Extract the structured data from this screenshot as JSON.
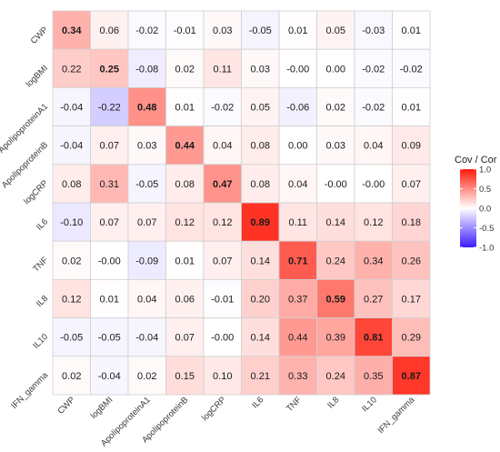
{
  "chart_data": {
    "type": "heatmap",
    "title": "",
    "variables": [
      "CWP",
      "logBMI",
      "ApolipoproteinA1",
      "ApolipoproteinB",
      "logCRP",
      "IL6",
      "TNF",
      "IL8",
      "IL10",
      "IFN_gamma"
    ],
    "lower_triangle": "covariance",
    "upper_triangle": "correlation",
    "matrix": [
      [
        "0.34",
        "0.06",
        "-0.02",
        "-0.01",
        "0.03",
        "-0.05",
        "0.01",
        "0.05",
        "-0.03",
        "0.01"
      ],
      [
        "0.22",
        "0.25",
        "-0.08",
        "0.02",
        "0.11",
        "0.03",
        "-0.00",
        "0.00",
        "-0.02",
        "-0.02"
      ],
      [
        "-0.04",
        "-0.22",
        "0.48",
        "0.01",
        "-0.02",
        "0.05",
        "-0.06",
        "0.02",
        "-0.02",
        "0.01"
      ],
      [
        "-0.04",
        "0.07",
        "0.03",
        "0.44",
        "0.04",
        "0.08",
        "0.00",
        "0.03",
        "0.04",
        "0.09"
      ],
      [
        "0.08",
        "0.31",
        "-0.05",
        "0.08",
        "0.47",
        "0.08",
        "0.04",
        "-0.00",
        "-0.00",
        "0.07"
      ],
      [
        "-0.10",
        "0.07",
        "0.07",
        "0.12",
        "0.12",
        "0.89",
        "0.11",
        "0.14",
        "0.12",
        "0.18"
      ],
      [
        "0.02",
        "-0.00",
        "-0.09",
        "0.01",
        "0.07",
        "0.14",
        "0.71",
        "0.24",
        "0.34",
        "0.26"
      ],
      [
        "0.12",
        "0.01",
        "0.04",
        "0.06",
        "-0.01",
        "0.20",
        "0.37",
        "0.59",
        "0.27",
        "0.17"
      ],
      [
        "-0.05",
        "-0.05",
        "-0.04",
        "0.07",
        "-0.00",
        "0.14",
        "0.44",
        "0.39",
        "0.81",
        "0.29"
      ],
      [
        "0.02",
        "-0.04",
        "0.02",
        "0.15",
        "0.10",
        "0.21",
        "0.33",
        "0.24",
        "0.35",
        "0.87"
      ]
    ],
    "color_scale": {
      "min": -1.0,
      "max": 1.0,
      "low_color": "#3b1cff",
      "mid_color": "#ffffff",
      "high_color": "#ff1a0a"
    },
    "legend": {
      "title": "Cov / Cor",
      "ticks": [
        "1.0",
        "0.5",
        "0.0",
        "-0.5",
        "-1.0"
      ],
      "tick_values": [
        1.0,
        0.5,
        0.0,
        -0.5,
        -1.0
      ],
      "placement": "right"
    },
    "grid": true
  }
}
